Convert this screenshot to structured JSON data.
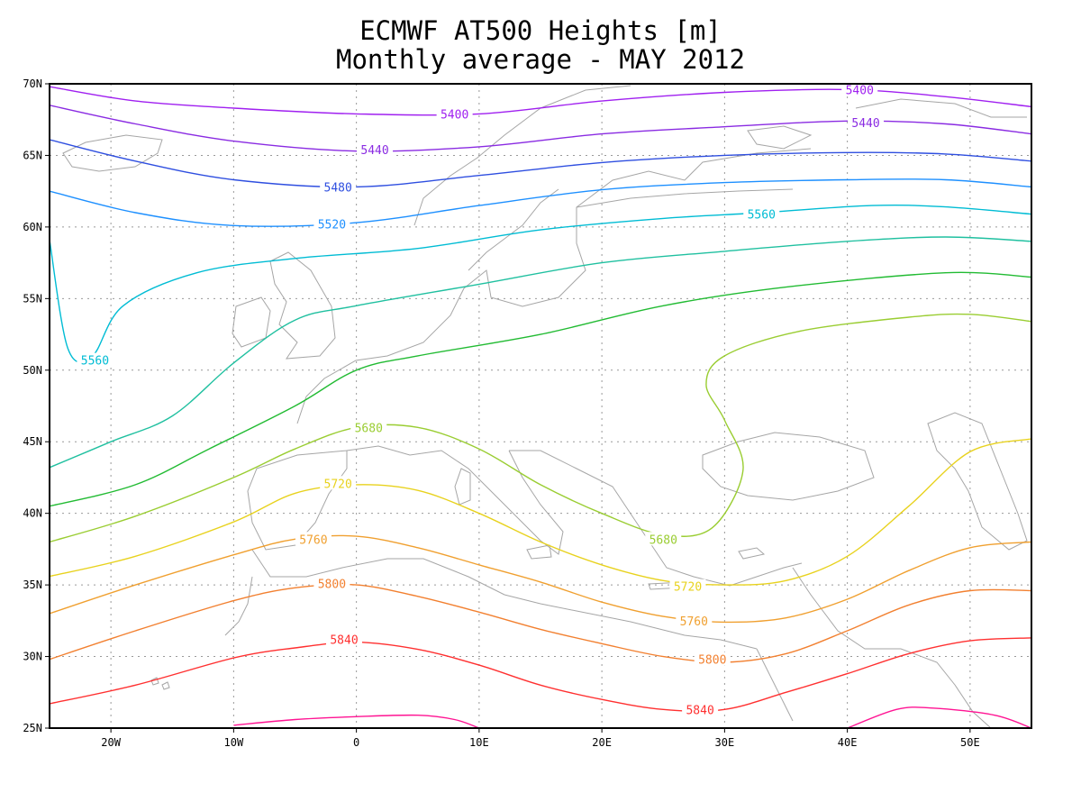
{
  "title": "ECMWF AT500 Heights [m]",
  "subtitle": "Monthly average - MAY 2012",
  "axes": {
    "lon_range": [
      -25,
      55
    ],
    "lat_range": [
      25,
      70
    ],
    "lon_ticks": [
      {
        "value": -20,
        "label": "20W"
      },
      {
        "value": -10,
        "label": "10W"
      },
      {
        "value": 0,
        "label": "0"
      },
      {
        "value": 10,
        "label": "10E"
      },
      {
        "value": 20,
        "label": "20E"
      },
      {
        "value": 30,
        "label": "30E"
      },
      {
        "value": 40,
        "label": "40E"
      },
      {
        "value": 50,
        "label": "50E"
      }
    ],
    "lat_ticks": [
      {
        "value": 25,
        "label": "25N"
      },
      {
        "value": 30,
        "label": "30N"
      },
      {
        "value": 35,
        "label": "35N"
      },
      {
        "value": 40,
        "label": "40N"
      },
      {
        "value": 45,
        "label": "45N"
      },
      {
        "value": 50,
        "label": "50N"
      },
      {
        "value": 55,
        "label": "55N"
      },
      {
        "value": 60,
        "label": "60N"
      },
      {
        "value": 65,
        "label": "65N"
      },
      {
        "value": 70,
        "label": "70N"
      }
    ],
    "grid": "dotted",
    "coastline_color": "#a6a6a6"
  },
  "contours": [
    {
      "level": "5400",
      "color": "#a020f0",
      "points": [
        [
          -25,
          69.8
        ],
        [
          -18,
          68.8
        ],
        [
          -10,
          68.3
        ],
        [
          0,
          67.9
        ],
        [
          10,
          67.9
        ],
        [
          20,
          68.8
        ],
        [
          30,
          69.4
        ],
        [
          40,
          69.6
        ],
        [
          48,
          69.1
        ],
        [
          55,
          68.4
        ]
      ],
      "labels": [
        [
          8,
          67.9
        ],
        [
          41,
          69.6
        ]
      ]
    },
    {
      "level": "5440",
      "color": "#8a2be2",
      "points": [
        [
          -25,
          68.5
        ],
        [
          -18,
          67.2
        ],
        [
          -10,
          66.0
        ],
        [
          0,
          65.3
        ],
        [
          10,
          65.6
        ],
        [
          20,
          66.5
        ],
        [
          30,
          67.0
        ],
        [
          40,
          67.4
        ],
        [
          48,
          67.2
        ],
        [
          55,
          66.5
        ]
      ],
      "labels": [
        [
          1.5,
          65.4
        ],
        [
          41.5,
          67.3
        ]
      ]
    },
    {
      "level": "5480",
      "color": "#2f4fe0",
      "points": [
        [
          -25,
          66.1
        ],
        [
          -18,
          64.6
        ],
        [
          -10,
          63.3
        ],
        [
          0,
          62.8
        ],
        [
          10,
          63.6
        ],
        [
          20,
          64.5
        ],
        [
          30,
          65.0
        ],
        [
          40,
          65.2
        ],
        [
          48,
          65.1
        ],
        [
          55,
          64.6
        ]
      ],
      "labels": [
        [
          -1.5,
          62.8
        ]
      ]
    },
    {
      "level": "5520",
      "color": "#1e90ff",
      "points": [
        [
          -25,
          62.5
        ],
        [
          -18,
          61.0
        ],
        [
          -10,
          60.1
        ],
        [
          0,
          60.3
        ],
        [
          10,
          61.5
        ],
        [
          20,
          62.6
        ],
        [
          30,
          63.1
        ],
        [
          40,
          63.3
        ],
        [
          48,
          63.3
        ],
        [
          55,
          62.8
        ]
      ],
      "labels": [
        [
          -2,
          60.2
        ]
      ]
    },
    {
      "level": "5560",
      "color": "#00bcd4",
      "points": [
        [
          -25,
          59.1
        ],
        [
          -23.5,
          51.5
        ],
        [
          -21.5,
          51.0
        ],
        [
          -19,
          54.5
        ],
        [
          -13,
          56.8
        ],
        [
          -5,
          57.8
        ],
        [
          5,
          58.5
        ],
        [
          15,
          59.8
        ],
        [
          25,
          60.6
        ],
        [
          33,
          61.0
        ],
        [
          42,
          61.5
        ],
        [
          48,
          61.4
        ],
        [
          55,
          60.9
        ]
      ],
      "labels": [
        [
          -21.3,
          50.7
        ],
        [
          33,
          60.9
        ]
      ]
    },
    {
      "level": "",
      "color": "#20c0a0",
      "points": [
        [
          -25,
          43.2
        ],
        [
          -20,
          45.0
        ],
        [
          -15,
          46.8
        ],
        [
          -10,
          50.5
        ],
        [
          -5,
          53.5
        ],
        [
          0,
          54.5
        ],
        [
          10,
          56.0
        ],
        [
          20,
          57.5
        ],
        [
          30,
          58.3
        ],
        [
          40,
          59.0
        ],
        [
          48,
          59.3
        ],
        [
          55,
          59.0
        ]
      ],
      "labels": []
    },
    {
      "level": "",
      "color": "#22bb33",
      "points": [
        [
          -25,
          40.5
        ],
        [
          -18,
          42.0
        ],
        [
          -12,
          44.5
        ],
        [
          -5,
          47.5
        ],
        [
          0,
          50.0
        ],
        [
          5,
          51.0
        ],
        [
          15,
          52.5
        ],
        [
          25,
          54.5
        ],
        [
          35,
          55.8
        ],
        [
          48,
          56.8
        ],
        [
          55,
          56.5
        ]
      ],
      "labels": []
    },
    {
      "level": "5680",
      "color": "#9acd32",
      "points": [
        [
          -25,
          38.0
        ],
        [
          -18,
          39.8
        ],
        [
          -10,
          42.5
        ],
        [
          -5,
          44.5
        ],
        [
          0,
          46.0
        ],
        [
          5,
          46.0
        ],
        [
          10,
          44.5
        ],
        [
          15,
          42.0
        ],
        [
          20,
          40.0
        ],
        [
          25,
          38.5
        ],
        [
          29,
          39.0
        ],
        [
          31.5,
          43.0
        ],
        [
          30,
          46.5
        ],
        [
          28.5,
          49.0
        ],
        [
          30,
          51.0
        ],
        [
          36,
          52.7
        ],
        [
          45,
          53.7
        ],
        [
          50,
          53.9
        ],
        [
          55,
          53.4
        ]
      ],
      "labels": [
        [
          1,
          46
        ],
        [
          25,
          38.2
        ]
      ]
    },
    {
      "level": "5720",
      "color": "#e8d21e",
      "points": [
        [
          -25,
          35.6
        ],
        [
          -18,
          37.0
        ],
        [
          -10,
          39.4
        ],
        [
          -5,
          41.4
        ],
        [
          0,
          42.0
        ],
        [
          5,
          41.6
        ],
        [
          10,
          40.0
        ],
        [
          15,
          38.0
        ],
        [
          20,
          36.4
        ],
        [
          25,
          35.3
        ],
        [
          30,
          35.0
        ],
        [
          35,
          35.3
        ],
        [
          40,
          37.0
        ],
        [
          45,
          40.5
        ],
        [
          50,
          44.3
        ],
        [
          55,
          45.2
        ]
      ],
      "labels": [
        [
          -1.5,
          42.1
        ],
        [
          27,
          34.9
        ]
      ]
    },
    {
      "level": "5760",
      "color": "#f0a030",
      "points": [
        [
          -25,
          33.0
        ],
        [
          -18,
          35.0
        ],
        [
          -10,
          37.1
        ],
        [
          -5,
          38.2
        ],
        [
          0,
          38.4
        ],
        [
          5,
          37.6
        ],
        [
          10,
          36.4
        ],
        [
          15,
          35.2
        ],
        [
          20,
          33.8
        ],
        [
          25,
          32.8
        ],
        [
          30,
          32.4
        ],
        [
          35,
          32.7
        ],
        [
          40,
          34.0
        ],
        [
          45,
          36.0
        ],
        [
          50,
          37.6
        ],
        [
          55,
          38.0
        ]
      ],
      "labels": [
        [
          -3.5,
          38.2
        ],
        [
          27.5,
          32.5
        ]
      ]
    },
    {
      "level": "5800",
      "color": "#f28030",
      "points": [
        [
          -25,
          29.8
        ],
        [
          -18,
          31.8
        ],
        [
          -10,
          33.9
        ],
        [
          -5,
          34.8
        ],
        [
          0,
          35.0
        ],
        [
          5,
          34.2
        ],
        [
          10,
          33.1
        ],
        [
          15,
          31.9
        ],
        [
          20,
          30.9
        ],
        [
          25,
          30.0
        ],
        [
          30,
          29.6
        ],
        [
          35,
          30.2
        ],
        [
          40,
          31.8
        ],
        [
          45,
          33.6
        ],
        [
          50,
          34.6
        ],
        [
          55,
          34.6
        ]
      ],
      "labels": [
        [
          -2,
          35.1
        ],
        [
          29,
          29.8
        ]
      ]
    },
    {
      "level": "5840",
      "color": "#ff3030",
      "points": [
        [
          -25,
          26.7
        ],
        [
          -18,
          28.0
        ],
        [
          -10,
          29.9
        ],
        [
          -5,
          30.6
        ],
        [
          0,
          31.0
        ],
        [
          5,
          30.5
        ],
        [
          10,
          29.4
        ],
        [
          15,
          28.0
        ],
        [
          20,
          27.0
        ],
        [
          25,
          26.3
        ],
        [
          30,
          26.3
        ],
        [
          35,
          27.5
        ],
        [
          40,
          28.8
        ],
        [
          45,
          30.2
        ],
        [
          50,
          31.1
        ],
        [
          55,
          31.3
        ]
      ],
      "labels": [
        [
          -1,
          31.2
        ],
        [
          28,
          26.3
        ]
      ]
    },
    {
      "level": "",
      "color": "#ff1493",
      "points": [
        [
          -10,
          25.2
        ],
        [
          -5,
          25.6
        ],
        [
          0,
          25.8
        ],
        [
          5,
          25.9
        ],
        [
          8,
          25.6
        ],
        [
          10,
          25.0
        ]
      ],
      "labels": []
    },
    {
      "level": "",
      "color": "#ff1493",
      "points": [
        [
          40,
          25.0
        ],
        [
          44,
          26.3
        ],
        [
          47,
          26.4
        ],
        [
          52,
          25.9
        ],
        [
          55,
          25.0
        ]
      ],
      "labels": []
    }
  ]
}
